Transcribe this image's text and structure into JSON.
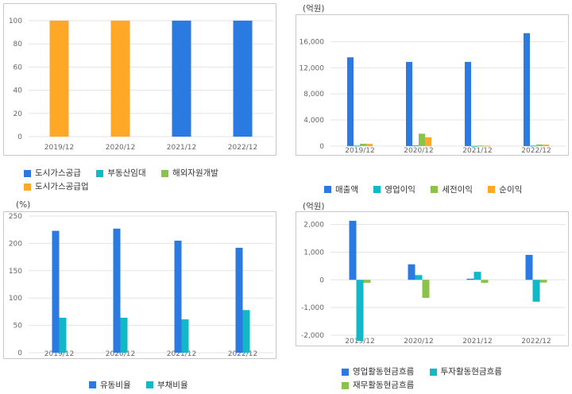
{
  "colors": {
    "blue": "#2a7ae2",
    "orange": "#ffa726",
    "teal": "#12b8c8",
    "green": "#8bc34a",
    "grid": "#e3e3e3",
    "border": "#c8c8c8",
    "axis": "#666666"
  },
  "chart_data": [
    {
      "type": "bar",
      "unit": "",
      "categories": [
        "2019/12",
        "2020/12",
        "2021/12",
        "2022/12"
      ],
      "ylim": [
        0,
        100
      ],
      "yticks": [
        0,
        20,
        40,
        60,
        80,
        100
      ],
      "stacked": true,
      "series": [
        {
          "name": "도시가스공급",
          "color": "#2a7ae2",
          "values": [
            0,
            0,
            100,
            100
          ]
        },
        {
          "name": "부동산임대",
          "color": "#12b8c8",
          "values": [
            0,
            0,
            0,
            0
          ]
        },
        {
          "name": "해외자원개발",
          "color": "#8bc34a",
          "values": [
            0,
            0,
            0,
            0
          ]
        },
        {
          "name": "도시가스공급업",
          "color": "#ffa726",
          "values": [
            100,
            100,
            0,
            0
          ]
        }
      ],
      "grid": true,
      "legend_position": "bottom"
    },
    {
      "type": "bar",
      "unit": "(억원)",
      "categories": [
        "2019/12",
        "2020/12",
        "2021/12",
        "2022/12"
      ],
      "ylim": [
        -500,
        18000
      ],
      "yticks": [
        0,
        4000,
        8000,
        12000,
        16000
      ],
      "ytick_labels": [
        "0",
        "4,000",
        "8,000",
        "12,000",
        "16,000"
      ],
      "series": [
        {
          "name": "매출액",
          "color": "#2a7ae2",
          "values": [
            13600,
            12900,
            12900,
            17300
          ]
        },
        {
          "name": "영업이익",
          "color": "#12b8c8",
          "values": [
            60,
            100,
            30,
            60
          ]
        },
        {
          "name": "세전이익",
          "color": "#8bc34a",
          "values": [
            350,
            1900,
            80,
            250
          ]
        },
        {
          "name": "순이익",
          "color": "#ffa726",
          "values": [
            330,
            1350,
            60,
            220
          ]
        }
      ],
      "grid": true,
      "legend_position": "bottom"
    },
    {
      "type": "bar",
      "unit": "(%)",
      "categories": [
        "2019/12",
        "2020/12",
        "2021/12",
        "2022/12"
      ],
      "ylim": [
        0,
        250
      ],
      "yticks": [
        0,
        50,
        100,
        150,
        200,
        250
      ],
      "series": [
        {
          "name": "유동비율",
          "color": "#2a7ae2",
          "values": [
            223,
            227,
            205,
            192
          ]
        },
        {
          "name": "부채비율",
          "color": "#12b8c8",
          "values": [
            64,
            64,
            61,
            78
          ]
        }
      ],
      "grid": true,
      "legend_position": "bottom"
    },
    {
      "type": "bar",
      "unit": "(억원)",
      "categories": [
        "2019/12",
        "2020/12",
        "2021/12",
        "2022/12"
      ],
      "ylim": [
        -2400,
        2300
      ],
      "yticks": [
        -2000,
        -1000,
        0,
        1000,
        2000
      ],
      "ytick_labels": [
        "-2,000",
        "-1,000",
        "0",
        "1,000",
        "2,000"
      ],
      "series": [
        {
          "name": "영업활동현금흐름",
          "color": "#2a7ae2",
          "values": [
            2130,
            560,
            40,
            900
          ]
        },
        {
          "name": "투자활동현금흐름",
          "color": "#12b8c8",
          "values": [
            -2200,
            170,
            290,
            -790
          ]
        },
        {
          "name": "재무활동현금흐름",
          "color": "#8bc34a",
          "values": [
            -110,
            -650,
            -110,
            -100
          ]
        }
      ],
      "grid": true,
      "legend_position": "bottom"
    }
  ]
}
